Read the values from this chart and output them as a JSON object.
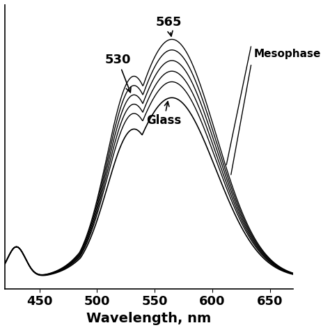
{
  "xlabel": "Wavelength, nm",
  "ylabel": "",
  "xlim": [
    420,
    670
  ],
  "ylim": [
    -0.02,
    1.05
  ],
  "xticks": [
    450,
    500,
    550,
    600,
    650
  ],
  "title": "",
  "background_color": "#ffffff",
  "label_565": "565",
  "label_530": "530",
  "label_glass": "Glass",
  "label_mesophase": "Mesophase",
  "n_mesophase": 5,
  "glass_peak_val": 0.7,
  "glass_shoulder_val": 0.57,
  "meso_peak_range": [
    0.76,
    0.92
  ],
  "meso_shoulder_range": [
    0.63,
    0.77
  ]
}
